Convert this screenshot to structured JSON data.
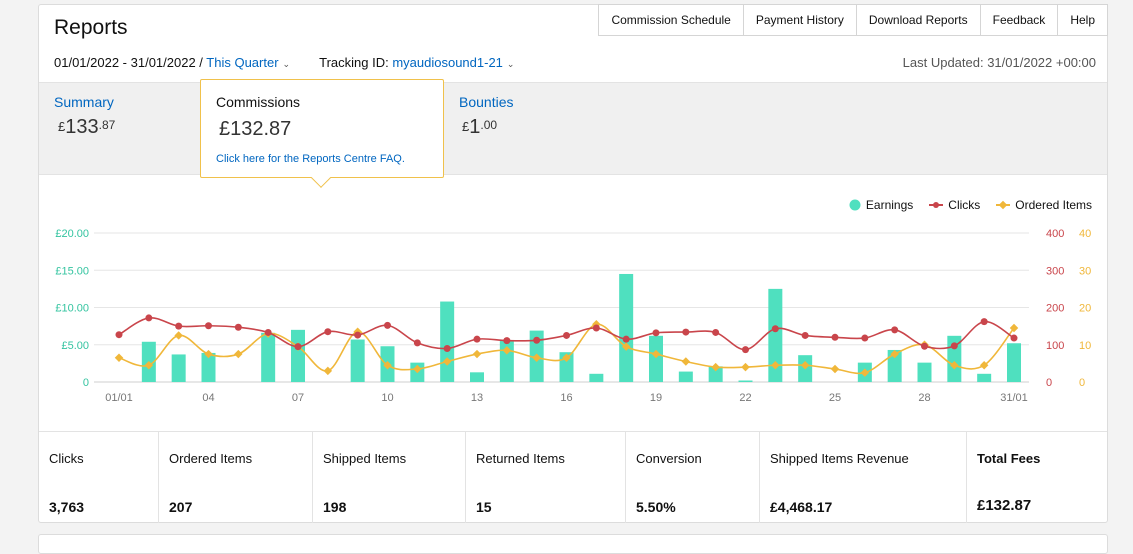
{
  "header": {
    "title": "Reports"
  },
  "topnav": [
    "Commission Schedule",
    "Payment History",
    "Download Reports",
    "Feedback",
    "Help"
  ],
  "filter": {
    "date_range": "01/01/2022 - 31/01/2022 /",
    "period": "This Quarter",
    "tracking_label": "Tracking ID:",
    "tracking_id": "myaudiosound1-21",
    "last_updated": "Last Updated: 31/01/2022 +00:00"
  },
  "tiles": {
    "summary": {
      "label": "Summary",
      "currency": "£",
      "whole": "133",
      "decimal": ".87"
    },
    "commissions": {
      "label": "Commissions",
      "currency": "£",
      "whole": "132",
      "decimal": ".87",
      "faq": "Click here for the Reports Centre FAQ."
    },
    "bounties": {
      "label": "Bounties",
      "currency": "£",
      "whole": "1",
      "decimal": ".00"
    }
  },
  "legend": {
    "earnings": "Earnings",
    "clicks": "Clicks",
    "ordered": "Ordered Items"
  },
  "colors": {
    "earnings": "#4fe0bf",
    "clicks": "#c9454b",
    "ordered": "#f0b73a",
    "link": "#0066c0",
    "popover_border": "#f0c14b"
  },
  "metrics": [
    {
      "label": "Clicks",
      "value": "3,763"
    },
    {
      "label": "Ordered Items",
      "value": "207"
    },
    {
      "label": "Shipped Items",
      "value": "198"
    },
    {
      "label": "Returned Items",
      "value": "15"
    },
    {
      "label": "Conversion",
      "value": "5.50%"
    },
    {
      "label": "Shipped Items Revenue",
      "value": "£4,468.17"
    },
    {
      "label": "Total Fees",
      "value": "£132.87"
    }
  ],
  "chart_data": {
    "type": "bar",
    "categories": [
      "01/01",
      "02/01",
      "03/01",
      "04/01",
      "05/01",
      "06/01",
      "07/01",
      "08/01",
      "09/01",
      "10/01",
      "11/01",
      "12/01",
      "13/01",
      "14/01",
      "15/01",
      "16/01",
      "17/01",
      "18/01",
      "19/01",
      "20/01",
      "21/01",
      "22/01",
      "23/01",
      "24/01",
      "25/01",
      "26/01",
      "27/01",
      "28/01",
      "29/01",
      "30/01",
      "31/01"
    ],
    "x_tick_labels": [
      "01/01",
      "04",
      "07",
      "10",
      "13",
      "16",
      "19",
      "22",
      "25",
      "28",
      "31/01"
    ],
    "y_left": {
      "ticks": [
        "0",
        "£5.00",
        "£10.00",
        "£15.00",
        "£20.00"
      ],
      "range": [
        0,
        20
      ]
    },
    "y_right_clicks": {
      "ticks": [
        "0",
        "100",
        "200",
        "300",
        "400"
      ],
      "range": [
        0,
        400
      ]
    },
    "y_right_ordered": {
      "ticks": [
        "0",
        "10",
        "20",
        "30",
        "40"
      ],
      "range": [
        0,
        40
      ]
    },
    "series": [
      {
        "name": "Earnings",
        "axis": "left",
        "values": [
          0,
          5.4,
          3.7,
          3.9,
          0,
          6.6,
          7.0,
          0,
          5.7,
          4.8,
          2.6,
          10.8,
          1.3,
          5.5,
          6.9,
          4.0,
          1.1,
          14.5,
          6.2,
          1.4,
          2.1,
          0.2,
          12.5,
          3.6,
          0,
          2.6,
          4.3,
          2.6,
          6.2,
          1.1,
          5.2
        ]
      },
      {
        "name": "Clicks",
        "axis": "right_clicks",
        "values": [
          127,
          172,
          150,
          151,
          147,
          133,
          95,
          135,
          126,
          152,
          105,
          90,
          115,
          111,
          112,
          125,
          145,
          115,
          132,
          134,
          133,
          87,
          143,
          125,
          120,
          118,
          140,
          96,
          97,
          162,
          118
        ]
      },
      {
        "name": "Ordered Items",
        "axis": "right_ordered",
        "values": [
          6.5,
          4.5,
          12.5,
          7.5,
          7.5,
          13,
          9.5,
          3,
          13.5,
          4.5,
          3.5,
          5.5,
          7.5,
          8.5,
          6.5,
          6.5,
          15.5,
          9.5,
          7.5,
          5.5,
          4,
          4,
          4.5,
          4.5,
          3.5,
          2.5,
          7.5,
          10,
          4.5,
          4.5,
          14.5
        ]
      }
    ],
    "grid": true,
    "legend_position": "top-right"
  }
}
